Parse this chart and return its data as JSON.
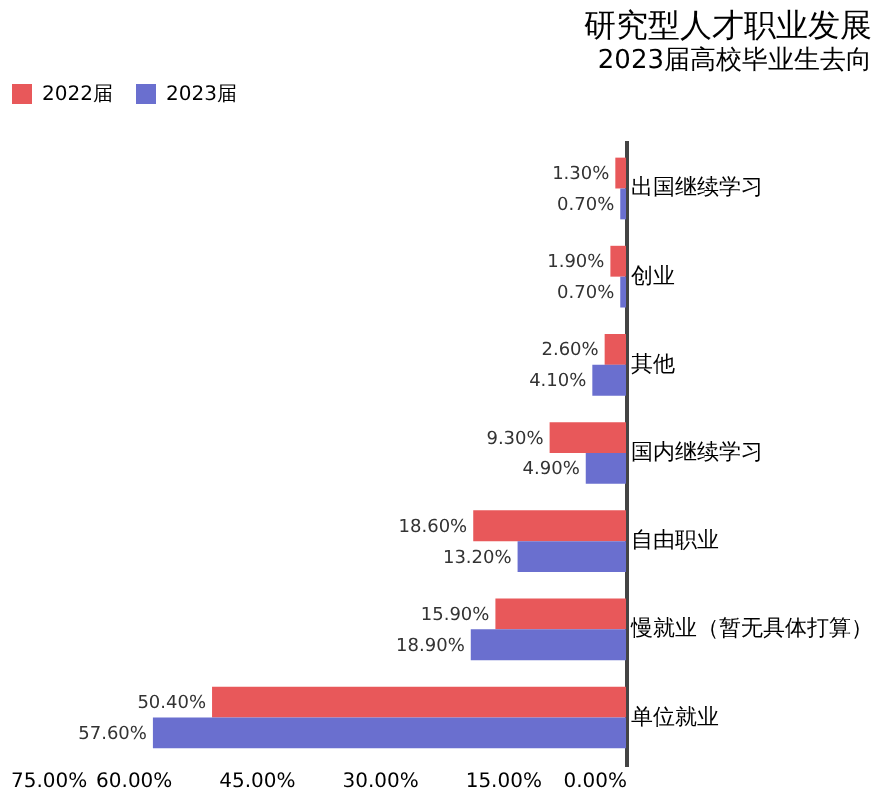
{
  "chart_data": {
    "type": "bar",
    "orientation": "horizontal",
    "title": "研究型人才职业发展",
    "subtitle": "2023届高校毕业生去向",
    "categories": [
      "出国继续学习",
      "创业",
      "其他",
      "国内继续学习",
      "自由职业",
      "慢就业（暂无具体打算）",
      "单位就业"
    ],
    "series": [
      {
        "name": "2022届",
        "color": "#e8585a",
        "values": [
          1.3,
          1.9,
          2.6,
          9.3,
          18.6,
          15.9,
          50.4
        ],
        "value_labels": [
          "1.30%",
          "1.90%",
          "2.60%",
          "9.30%",
          "18.60%",
          "15.90%",
          "50.40%"
        ]
      },
      {
        "name": "2023届",
        "color": "#6a6fcf",
        "values": [
          0.7,
          0.7,
          4.1,
          4.9,
          13.2,
          18.9,
          57.6
        ],
        "value_labels": [
          "0.70%",
          "0.70%",
          "4.10%",
          "4.90%",
          "13.20%",
          "18.90%",
          "57.60%"
        ]
      }
    ],
    "xlim": [
      75,
      0
    ],
    "xticks": [
      {
        "value": 0,
        "label": "0.00%"
      },
      {
        "value": 15,
        "label": "15.00%"
      },
      {
        "value": 30,
        "label": "30.00%"
      },
      {
        "value": 45,
        "label": "45.00%"
      },
      {
        "value": 60,
        "label": "60.00%"
      },
      {
        "value": 75,
        "label": "75.00%"
      }
    ],
    "legend": "top",
    "grid": false
  }
}
